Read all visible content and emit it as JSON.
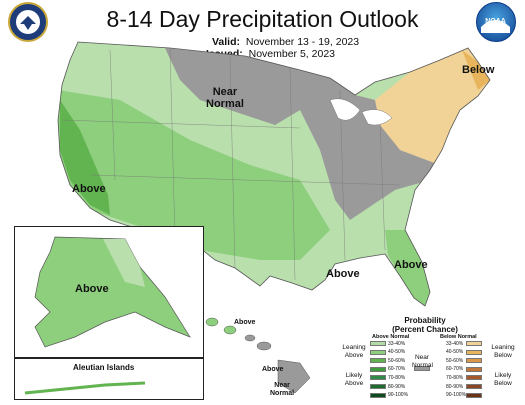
{
  "title": "8-14 Day Precipitation Outlook",
  "valid": {
    "label": "Valid:",
    "value": "November 13 - 19, 2023"
  },
  "issued": {
    "label": "Issued:",
    "value": "November 5, 2023"
  },
  "logos": {
    "left": "doc-seal",
    "right": "noaa-logo",
    "right_text": "NOAA"
  },
  "map_labels": {
    "near_normal_line1": "Near",
    "near_normal_line2": "Normal",
    "below_ne": "Below",
    "above_ca": "Above",
    "above_fl": "Above",
    "above_tx": "Above",
    "above_ak": "Above",
    "aleutian": "Aleutian Islands",
    "hi_above1": "Above",
    "hi_above2": "Above",
    "hi_near1": "Near",
    "hi_near2": "Normal"
  },
  "legend": {
    "title_line1": "Probability",
    "title_line2": "(Percent Chance)",
    "above_header": "Above Normal",
    "below_header": "Below Normal",
    "above_ranges": [
      "33-40%",
      "40-50%",
      "50-60%",
      "60-70%",
      "70-80%",
      "80-90%",
      "90-100%"
    ],
    "below_ranges": [
      "33-40%",
      "40-50%",
      "50-60%",
      "60-70%",
      "70-80%",
      "80-90%",
      "90-100%"
    ],
    "above_colors": [
      "#b3dba8",
      "#8dcf7d",
      "#62b450",
      "#3f9b3c",
      "#2e8a45",
      "#1b6b2e",
      "#0e4a1e"
    ],
    "below_colors": [
      "#f2d397",
      "#e8b55c",
      "#d9984a",
      "#c27638",
      "#a65a2c",
      "#8a4722",
      "#6b3418"
    ],
    "near_color": "#9a9a9a",
    "leaning_above_1": "Leaning",
    "leaning_above_2": "Above",
    "likely_above_1": "Likely",
    "likely_above_2": "Above",
    "near_1": "Near",
    "near_2": "Normal",
    "leaning_below_1": "Leaning",
    "leaning_below_2": "Below",
    "likely_below_1": "Likely",
    "likely_below_2": "Below"
  }
}
